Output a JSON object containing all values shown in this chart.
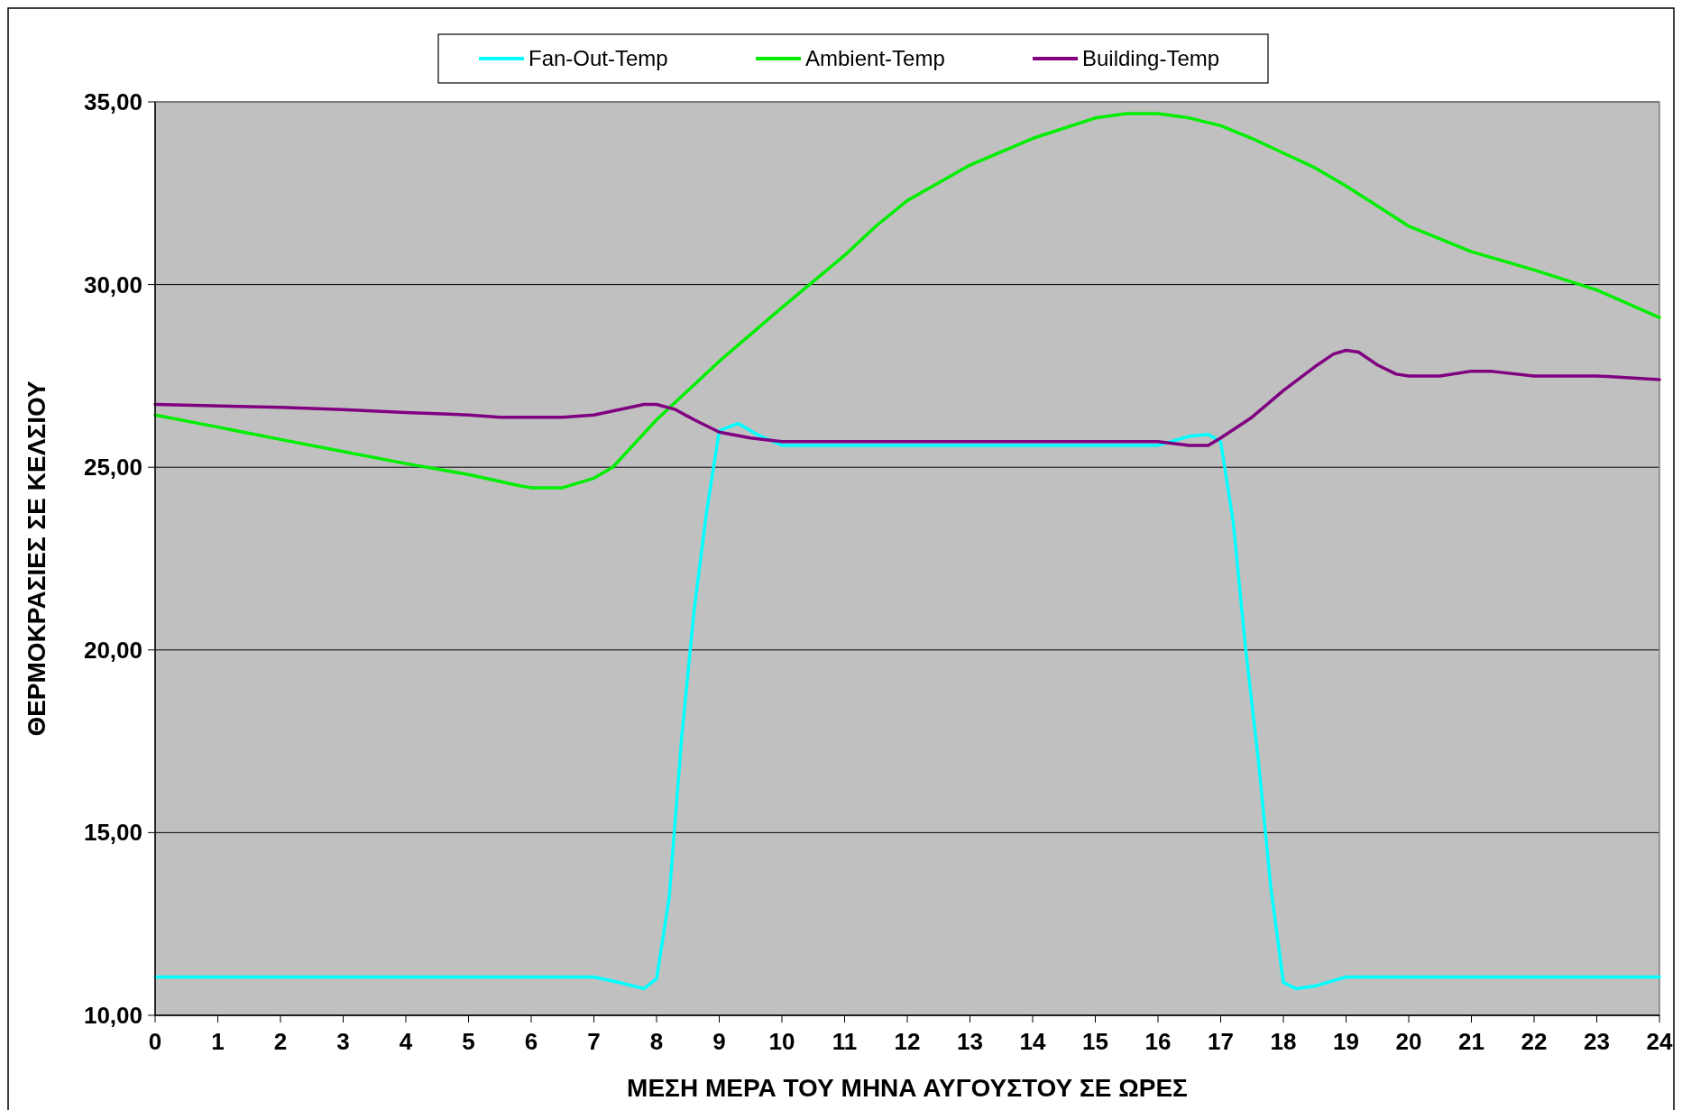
{
  "chart_data": {
    "type": "line",
    "xlabel": "ΜΕΣΗ ΜΕΡΑ ΤΟΥ ΜΗΝΑ ΑΥΓΟΥΣΤΟΥ ΣΕ ΩΡΕΣ",
    "ylabel": "ΘΕΡΜΟΚΡΑΣΙΕΣ ΣΕ ΚΕΛΣΙΟΥ",
    "xlim": [
      0,
      24
    ],
    "xticks": [
      0,
      1,
      2,
      3,
      4,
      5,
      6,
      7,
      8,
      9,
      10,
      11,
      12,
      13,
      14,
      15,
      16,
      17,
      18,
      19,
      20,
      21,
      22,
      23,
      24
    ],
    "ylim": [
      10,
      35
    ],
    "yticks": [
      {
        "value": 10,
        "label": "10,00"
      },
      {
        "value": 15,
        "label": "15,00"
      },
      {
        "value": 20,
        "label": "20,00"
      },
      {
        "value": 25,
        "label": "25,00"
      },
      {
        "value": 30,
        "label": "30,00"
      },
      {
        "value": 35,
        "label": "35,00"
      }
    ],
    "grid": "y",
    "legend": "top",
    "marker": "none",
    "line_style": "solid",
    "series": [
      {
        "name": "Fan-Out-Temp",
        "color": "#00ffff",
        "x": [
          0,
          7,
          7.4,
          7.8,
          8,
          8.2,
          8.4,
          8.6,
          8.8,
          9,
          9.3,
          9.6,
          10,
          16,
          16.5,
          16.8,
          17,
          17.2,
          17.4,
          17.6,
          17.8,
          18,
          18.2,
          18.5,
          19,
          24
        ],
        "values": [
          11.05,
          11.05,
          10.9,
          10.73,
          11.0,
          13.2,
          17.6,
          21.1,
          23.8,
          26.0,
          26.2,
          25.9,
          25.6,
          25.6,
          25.85,
          25.9,
          25.7,
          23.5,
          20.0,
          17.0,
          13.5,
          10.9,
          10.73,
          10.8,
          11.05,
          11.05
        ]
      },
      {
        "name": "Ambient-Temp",
        "color": "#00ee00",
        "x": [
          0,
          1,
          2,
          3,
          4,
          5,
          5.8,
          6,
          6.5,
          7,
          7.3,
          8,
          9,
          10,
          11,
          11.5,
          12,
          13,
          14,
          15,
          15.5,
          16,
          16.5,
          17,
          17.5,
          18,
          18.5,
          19,
          20,
          21,
          22,
          23,
          24
        ],
        "values": [
          26.43,
          26.1,
          25.76,
          25.43,
          25.1,
          24.8,
          24.5,
          24.44,
          24.44,
          24.7,
          25.0,
          26.3,
          27.9,
          29.37,
          30.8,
          31.6,
          32.3,
          33.27,
          34.0,
          34.56,
          34.68,
          34.68,
          34.56,
          34.35,
          34.0,
          33.6,
          33.2,
          32.7,
          31.6,
          30.9,
          30.4,
          29.85,
          29.1
        ]
      },
      {
        "name": "Building-Temp",
        "color": "#800080",
        "x": [
          0,
          2,
          3,
          4,
          5,
          5.5,
          6.5,
          7,
          7.8,
          8,
          8.3,
          8.6,
          9,
          9.5,
          10,
          16,
          16.5,
          16.8,
          17,
          17.5,
          18,
          18.5,
          18.8,
          19,
          19.2,
          19.5,
          19.8,
          20,
          20.5,
          21,
          21.3,
          22,
          23,
          24
        ],
        "values": [
          26.72,
          26.64,
          26.58,
          26.5,
          26.43,
          26.37,
          26.37,
          26.43,
          26.72,
          26.72,
          26.58,
          26.3,
          25.96,
          25.8,
          25.7,
          25.7,
          25.6,
          25.6,
          25.8,
          26.37,
          27.1,
          27.75,
          28.1,
          28.2,
          28.15,
          27.8,
          27.55,
          27.5,
          27.5,
          27.63,
          27.63,
          27.5,
          27.5,
          27.4
        ]
      }
    ]
  }
}
